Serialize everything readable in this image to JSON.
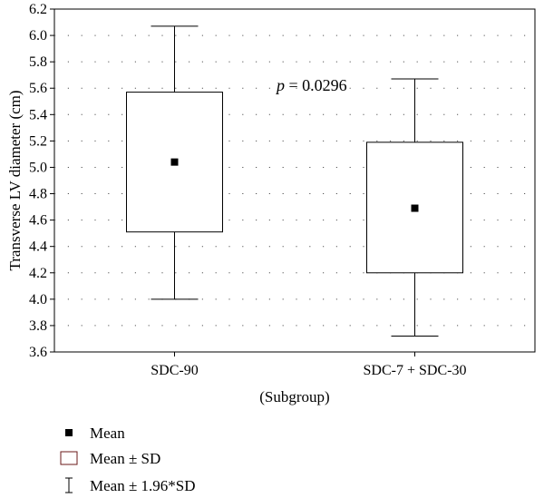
{
  "chart_data": {
    "type": "box",
    "title": "",
    "xlabel": "(Subgroup)",
    "ylabel": "Transverse LV diameter (cm)",
    "ylim": [
      3.6,
      6.2
    ],
    "yticks": [
      "3.6",
      "3.8",
      "4.0",
      "4.2",
      "4.4",
      "4.6",
      "4.8",
      "5.0",
      "5.2",
      "5.4",
      "5.6",
      "5.8",
      "6.0",
      "6.2"
    ],
    "grid": true,
    "categories": [
      "SDC-90",
      "SDC-7 + SDC-30"
    ],
    "groups": [
      {
        "category": "SDC-90",
        "mean": 5.04,
        "sd_low": 4.51,
        "sd_high": 5.57,
        "whisker_low": 4.0,
        "whisker_high": 6.07
      },
      {
        "category": "SDC-7 + SDC-30",
        "mean": 4.69,
        "sd_low": 4.2,
        "sd_high": 5.19,
        "whisker_low": 3.72,
        "whisker_high": 5.67
      }
    ],
    "annotation": {
      "italic": "p",
      "text": " = 0.0296"
    },
    "legend": [
      {
        "symbol": "mean",
        "label": "Mean"
      },
      {
        "symbol": "box",
        "label": "Mean ± SD"
      },
      {
        "symbol": "whisker",
        "label": "Mean ± 1.96*SD"
      }
    ],
    "legend_position": "bottom-left"
  }
}
